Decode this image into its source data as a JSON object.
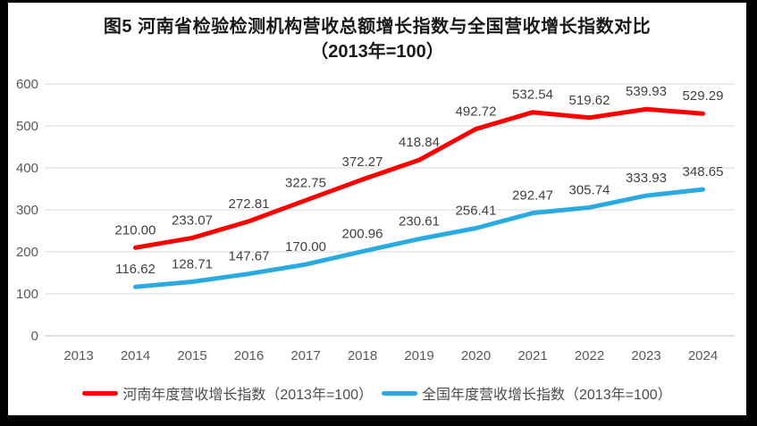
{
  "title": {
    "line1": "图5  河南省检验检测机构营收总额增长指数与全国营收增长指数对比",
    "line2": "（2013年=100）"
  },
  "chart_data": {
    "type": "line",
    "title": "图5 河南省检验检测机构营收总额增长指数与全国营收增长指数对比（2013年=100）",
    "categories": [
      "2013",
      "2014",
      "2015",
      "2016",
      "2017",
      "2018",
      "2019",
      "2020",
      "2021",
      "2022",
      "2023",
      "2024"
    ],
    "series": [
      {
        "name": "河南年度营收增长指数（2013年=100）",
        "color": "#FF0000",
        "values": [
          null,
          210.0,
          233.07,
          272.81,
          322.75,
          372.27,
          418.84,
          492.72,
          532.54,
          519.62,
          539.93,
          529.29
        ]
      },
      {
        "name": "全国年度营收增长指数（2013年=100）",
        "color": "#29ABE2",
        "values": [
          null,
          116.62,
          128.71,
          147.67,
          170.0,
          200.96,
          230.61,
          256.41,
          292.47,
          305.74,
          333.93,
          348.65
        ]
      }
    ],
    "xlabel": "",
    "ylabel": "",
    "ylim": [
      0,
      600
    ],
    "yticks": [
      0,
      100,
      200,
      300,
      400,
      500,
      600
    ],
    "grid": true,
    "grid_color": "#D9D9D9",
    "axis_line_color": "#BFBFBF",
    "tick_label_color": "#595959",
    "data_label_color": "#404040",
    "label_decimals": 2,
    "legend_position": "bottom"
  }
}
